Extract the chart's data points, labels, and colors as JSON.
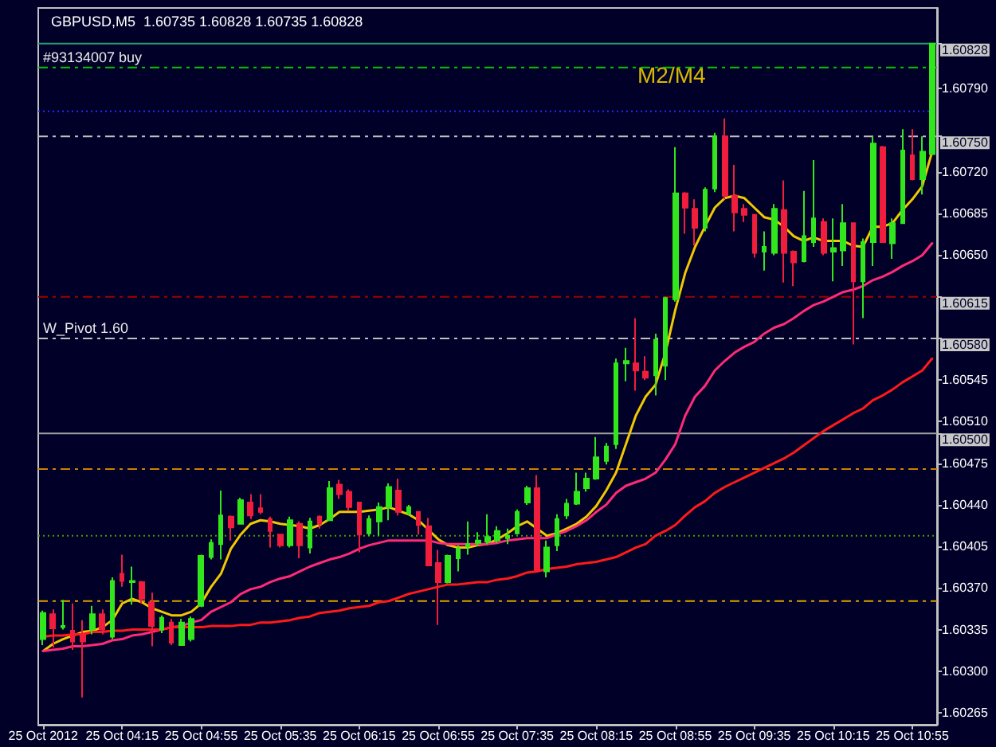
{
  "chart_data": {
    "type": "candlestick",
    "title": "GBPUSD,M5  1.60735 1.60828 1.60735 1.60828",
    "categories": [
      "25 Oct 2012",
      null,
      null,
      null,
      null,
      null,
      null,
      null,
      "25 Oct 04:15",
      null,
      null,
      null,
      null,
      null,
      null,
      null,
      "25 Oct 04:55",
      null,
      null,
      null,
      null,
      null,
      null,
      null,
      "25 Oct 05:35",
      null,
      null,
      null,
      null,
      null,
      null,
      null,
      "25 Oct 06:15",
      null,
      null,
      null,
      null,
      null,
      null,
      null,
      "25 Oct 06:55",
      null,
      null,
      null,
      null,
      null,
      null,
      null,
      "25 Oct 07:35",
      null,
      null,
      null,
      null,
      null,
      null,
      null,
      "25 Oct 08:15",
      null,
      null,
      null,
      null,
      null,
      null,
      null,
      "25 Oct 08:55",
      null,
      null,
      null,
      null,
      null,
      null,
      null,
      "25 Oct 09:35",
      null,
      null,
      null,
      null,
      null,
      null,
      null,
      "25 Oct 10:15",
      null,
      null,
      null,
      null,
      null,
      null,
      null,
      "25 Oct 10:55",
      null,
      null
    ],
    "series": [
      {
        "type": "candlestick",
        "ohlc": [
          [
            1.60327,
            1.60351,
            1.60322,
            1.60349
          ],
          [
            1.60348,
            1.60352,
            1.6032,
            1.60336
          ],
          [
            1.60337,
            1.6036,
            1.60335,
            1.60338
          ],
          [
            1.60334,
            1.60357,
            1.60318,
            1.60325
          ],
          [
            1.60331,
            1.60343,
            1.60278,
            1.60325
          ],
          [
            1.60335,
            1.60355,
            1.60331,
            1.60348
          ],
          [
            1.60348,
            1.60352,
            1.60331,
            1.60335
          ],
          [
            1.60329,
            1.60379,
            1.60327,
            1.60376
          ],
          [
            1.60382,
            1.60398,
            1.60371,
            1.60376
          ],
          [
            1.60375,
            1.60388,
            1.60356,
            1.60376
          ],
          [
            1.60375,
            1.60376,
            1.60357,
            1.60361
          ],
          [
            1.60358,
            1.60366,
            1.60321,
            1.60338
          ],
          [
            1.60335,
            1.60347,
            1.60332,
            1.60345
          ],
          [
            1.60341,
            1.60344,
            1.60322,
            1.60324
          ],
          [
            1.60322,
            1.60344,
            1.60322,
            1.60341
          ],
          [
            1.60327,
            1.60346,
            1.60325,
            1.60344
          ],
          [
            1.60355,
            1.60398,
            1.60354,
            1.60397
          ],
          [
            1.60396,
            1.60411,
            1.60394,
            1.60408
          ],
          [
            1.60407,
            1.60452,
            1.60394,
            1.60431
          ],
          [
            1.6043,
            1.60431,
            1.6041,
            1.60421
          ],
          [
            1.60424,
            1.60446,
            1.60424,
            1.60444
          ],
          [
            1.60442,
            1.60449,
            1.60428,
            1.60431
          ],
          [
            1.60437,
            1.60449,
            1.60432,
            1.60434
          ],
          [
            1.60428,
            1.6043,
            1.60404,
            1.60418
          ],
          [
            1.60415,
            1.60415,
            1.60404,
            1.60406
          ],
          [
            1.60406,
            1.6043,
            1.60404,
            1.60427
          ],
          [
            1.60424,
            1.60426,
            1.60395,
            1.60406
          ],
          [
            1.60404,
            1.60429,
            1.60399,
            1.60426
          ],
          [
            1.6043,
            1.60431,
            1.6042,
            1.60424
          ],
          [
            1.60427,
            1.6046,
            1.60427,
            1.60454
          ],
          [
            1.60457,
            1.60461,
            1.60445,
            1.60449
          ],
          [
            1.60451,
            1.60453,
            1.60435,
            1.60438
          ],
          [
            1.60442,
            1.60442,
            1.604,
            1.60415
          ],
          [
            1.60416,
            1.60431,
            1.60414,
            1.60428
          ],
          [
            1.60426,
            1.60442,
            1.60414,
            1.60438
          ],
          [
            1.60438,
            1.60458,
            1.60427,
            1.60455
          ],
          [
            1.60452,
            1.60462,
            1.60431,
            1.60434
          ],
          [
            1.60433,
            1.6044,
            1.60431,
            1.60438
          ],
          [
            1.60434,
            1.60434,
            1.60415,
            1.60423
          ],
          [
            1.60422,
            1.60429,
            1.60389,
            1.60389
          ],
          [
            1.60391,
            1.60402,
            1.60339,
            1.60375
          ],
          [
            1.60375,
            1.60398,
            1.60374,
            1.60397
          ],
          [
            1.60395,
            1.60406,
            1.60384,
            1.60403
          ],
          [
            1.60405,
            1.60426,
            1.60398,
            1.60407
          ],
          [
            1.60408,
            1.60417,
            1.60405,
            1.6041
          ],
          [
            1.60409,
            1.60432,
            1.60407,
            1.60413
          ],
          [
            1.6041,
            1.60422,
            1.60408,
            1.60418
          ],
          [
            1.60412,
            1.6042,
            1.60407,
            1.60414
          ],
          [
            1.60416,
            1.60436,
            1.60415,
            1.60434
          ],
          [
            1.60442,
            1.60456,
            1.6044,
            1.60454
          ],
          [
            1.60454,
            1.60465,
            1.60384,
            1.60385
          ],
          [
            1.60384,
            1.6041,
            1.60379,
            1.60404
          ],
          [
            1.60406,
            1.60432,
            1.60401,
            1.60428
          ],
          [
            1.60431,
            1.60445,
            1.60428,
            1.60441
          ],
          [
            1.60441,
            1.60467,
            1.6044,
            1.60451
          ],
          [
            1.60454,
            1.60467,
            1.60451,
            1.60462
          ],
          [
            1.60462,
            1.60497,
            1.60461,
            1.6048
          ],
          [
            1.60477,
            1.60492,
            1.60474,
            1.60489
          ],
          [
            1.60491,
            1.60563,
            1.60487,
            1.60559
          ],
          [
            1.60559,
            1.60572,
            1.60544,
            1.60561
          ],
          [
            1.60559,
            1.60597,
            1.60536,
            1.60553
          ],
          [
            1.60552,
            1.60565,
            1.60545,
            1.60547
          ],
          [
            1.60549,
            1.60584,
            1.60532,
            1.60579
          ],
          [
            1.60557,
            1.60615,
            1.60545,
            1.60614
          ],
          [
            1.60613,
            1.60741,
            1.60611,
            1.60702
          ],
          [
            1.60702,
            1.60703,
            1.60668,
            1.6069
          ],
          [
            1.60689,
            1.60697,
            1.60658,
            1.60673
          ],
          [
            1.60673,
            1.60707,
            1.6067,
            1.60705
          ],
          [
            1.60706,
            1.60753,
            1.60703,
            1.6075
          ],
          [
            1.6075,
            1.60765,
            1.60697,
            1.607
          ],
          [
            1.607,
            1.60726,
            1.6067,
            1.60686
          ],
          [
            1.60689,
            1.60693,
            1.60678,
            1.60684
          ],
          [
            1.60684,
            1.60684,
            1.60648,
            1.60652
          ],
          [
            1.60653,
            1.6067,
            1.60637,
            1.60657
          ],
          [
            1.60652,
            1.60693,
            1.6065,
            1.60689
          ],
          [
            1.60688,
            1.60713,
            1.60627,
            1.60652
          ],
          [
            1.60653,
            1.60654,
            1.60624,
            1.60644
          ],
          [
            1.60645,
            1.60704,
            1.60644,
            1.60666
          ],
          [
            1.60661,
            1.6073,
            1.60657,
            1.60681
          ],
          [
            1.60678,
            1.60681,
            1.6065,
            1.60652
          ],
          [
            1.60653,
            1.60681,
            1.60628,
            1.60656
          ],
          [
            1.60654,
            1.60693,
            1.60641,
            1.60677
          ],
          [
            1.60677,
            1.60677,
            1.60575,
            1.60628
          ],
          [
            1.60628,
            1.60664,
            1.60597,
            1.60661
          ],
          [
            1.60661,
            1.6075,
            1.60641,
            1.60744
          ],
          [
            1.60741,
            1.60742,
            1.60661,
            1.60661
          ],
          [
            1.6066,
            1.60681,
            1.60647,
            1.60677
          ],
          [
            1.60677,
            1.60756,
            1.60677,
            1.60738
          ],
          [
            1.60734,
            1.60756,
            1.60713,
            1.60714
          ],
          [
            1.60714,
            1.6075,
            1.60701,
            1.60737
          ],
          [
            1.60735,
            1.60828,
            1.60735,
            1.60828
          ]
        ],
        "colors": [
          "#32e61e",
          "#f01e3c",
          "#32e61e",
          "#f01e3c",
          "#f01e3c",
          "#32e61e",
          "#f01e3c",
          "#32e61e",
          "#f01e3c",
          "#32e61e",
          "#f01e3c",
          "#f01e3c",
          "#32e61e",
          "#f01e3c",
          "#32e61e",
          "#32e61e",
          "#32e61e",
          "#32e61e",
          "#32e61e",
          "#f01e3c",
          "#32e61e",
          "#f01e3c",
          "#f01e3c",
          "#f01e3c",
          "#f01e3c",
          "#32e61e",
          "#f01e3c",
          "#32e61e",
          "#f01e3c",
          "#32e61e",
          "#f01e3c",
          "#f01e3c",
          "#f01e3c",
          "#32e61e",
          "#32e61e",
          "#32e61e",
          "#f01e3c",
          "#32e61e",
          "#f01e3c",
          "#f01e3c",
          "#f01e3c",
          "#32e61e",
          "#32e61e",
          "#32e61e",
          "#32e61e",
          "#32e61e",
          "#32e61e",
          "#32e61e",
          "#32e61e",
          "#32e61e",
          "#f01e3c",
          "#32e61e",
          "#32e61e",
          "#32e61e",
          "#32e61e",
          "#32e61e",
          "#32e61e",
          "#32e61e",
          "#32e61e",
          "#32e61e",
          "#f01e3c",
          "#f01e3c",
          "#32e61e",
          "#32e61e",
          "#32e61e",
          "#f01e3c",
          "#f01e3c",
          "#32e61e",
          "#32e61e",
          "#f01e3c",
          "#f01e3c",
          "#f01e3c",
          "#f01e3c",
          "#32e61e",
          "#32e61e",
          "#f01e3c",
          "#f01e3c",
          "#32e61e",
          "#32e61e",
          "#f01e3c",
          "#32e61e",
          "#32e61e",
          "#f01e3c",
          "#32e61e",
          "#32e61e",
          "#f01e3c",
          "#32e61e",
          "#32e61e",
          "#f01e3c",
          "#32e61e",
          "#32e61e"
        ]
      },
      {
        "type": "line",
        "color": "#f0c800",
        "values": [
          1.60317,
          1.60323,
          1.60327,
          1.6033,
          1.60333,
          1.60334,
          1.60337,
          1.60343,
          1.60357,
          1.60361,
          1.60358,
          1.60353,
          1.6035,
          1.60347,
          1.60347,
          1.6035,
          1.60357,
          1.60371,
          1.60382,
          1.60403,
          1.60415,
          1.60424,
          1.60427,
          1.60426,
          1.60424,
          1.60423,
          1.60422,
          1.6042,
          1.60423,
          1.60428,
          1.60434,
          1.60434,
          1.60434,
          1.60435,
          1.60436,
          1.60438,
          1.60435,
          1.60432,
          1.60427,
          1.60419,
          1.60411,
          1.60406,
          1.60404,
          1.60404,
          1.60406,
          1.60407,
          1.60411,
          1.60416,
          1.60422,
          1.60426,
          1.6042,
          1.60414,
          1.60416,
          1.6042,
          1.60424,
          1.6043,
          1.60439,
          1.60452,
          1.60467,
          1.60491,
          1.60515,
          1.60531,
          1.60541,
          1.60568,
          1.60604,
          1.60635,
          1.60657,
          1.60674,
          1.6069,
          1.60698,
          1.607,
          1.60698,
          1.6069,
          1.60682,
          1.6068,
          1.60674,
          1.60666,
          1.60662,
          1.60665,
          1.60662,
          1.60662,
          1.60662,
          1.60658,
          1.60657,
          1.60674,
          1.60674,
          1.60677,
          1.60688,
          1.60697,
          1.60708,
          1.60737
        ]
      },
      {
        "type": "line",
        "color": "#ff2a78",
        "values": [
          1.60317,
          1.60318,
          1.60319,
          1.60321,
          1.60321,
          1.60322,
          1.60323,
          1.60326,
          1.60327,
          1.6033,
          1.60331,
          1.60333,
          1.60335,
          1.60337,
          1.60338,
          1.60341,
          1.60343,
          1.6035,
          1.60354,
          1.60358,
          1.60365,
          1.60369,
          1.60371,
          1.60375,
          1.60378,
          1.6038,
          1.60384,
          1.60388,
          1.60391,
          1.60394,
          1.60396,
          1.60399,
          1.60403,
          1.60406,
          1.60408,
          1.6041,
          1.6041,
          1.6041,
          1.6041,
          1.6041,
          1.60408,
          1.60407,
          1.60407,
          1.60407,
          1.60407,
          1.60407,
          1.60408,
          1.6041,
          1.60411,
          1.60412,
          1.60412,
          1.60412,
          1.60415,
          1.60418,
          1.60422,
          1.60427,
          1.60434,
          1.6044,
          1.6045,
          1.60456,
          1.60459,
          1.60462,
          1.60467,
          1.60478,
          1.60491,
          1.60515,
          1.60531,
          1.6054,
          1.60553,
          1.60561,
          1.60568,
          1.60573,
          1.60577,
          1.60584,
          1.60589,
          1.60592,
          1.60597,
          1.60603,
          1.60608,
          1.60611,
          1.60615,
          1.60619,
          1.60621,
          1.60624,
          1.60629,
          1.60632,
          1.60636,
          1.60641,
          1.60645,
          1.6065,
          1.6066
        ]
      },
      {
        "type": "line",
        "color": "#ff1a1a",
        "values": [
          1.60329,
          1.6033,
          1.6033,
          1.60331,
          1.60331,
          1.60333,
          1.60333,
          1.60334,
          1.60334,
          1.60335,
          1.60335,
          1.60335,
          1.60335,
          1.60337,
          1.60337,
          1.60337,
          1.60337,
          1.60338,
          1.60338,
          1.60338,
          1.60339,
          1.60339,
          1.60341,
          1.60341,
          1.60342,
          1.60343,
          1.60345,
          1.60346,
          1.60349,
          1.6035,
          1.60351,
          1.60353,
          1.60354,
          1.60355,
          1.60358,
          1.60359,
          1.60362,
          1.60365,
          1.60367,
          1.60369,
          1.60371,
          1.60373,
          1.60373,
          1.60374,
          1.60375,
          1.60375,
          1.60377,
          1.60378,
          1.6038,
          1.60383,
          1.60384,
          1.60386,
          1.60387,
          1.60388,
          1.6039,
          1.60391,
          1.60392,
          1.60394,
          1.60396,
          1.604,
          1.60404,
          1.60407,
          1.60414,
          1.60418,
          1.60423,
          1.60431,
          1.60438,
          1.60443,
          1.6045,
          1.60455,
          1.60459,
          1.60463,
          1.60467,
          1.60471,
          1.60475,
          1.60479,
          1.60484,
          1.6049,
          1.60496,
          1.60502,
          1.60507,
          1.60512,
          1.60517,
          1.60521,
          1.60528,
          1.60532,
          1.60537,
          1.60543,
          1.60548,
          1.60553,
          1.60563
        ]
      }
    ],
    "ylim": [
      1.60255,
      1.60858
    ],
    "yticks": [
      1.60265,
      {
        "value": 1.603,
        "label": "1.60300"
      },
      1.60335,
      {
        "value": 1.6037,
        "label": "1.60370"
      },
      1.60405,
      {
        "value": 1.6044,
        "label": "1.60440"
      },
      1.60475,
      {
        "value": 1.605,
        "label": "1.60500"
      },
      {
        "value": 1.6051,
        "label": "1.60510"
      },
      1.60545,
      {
        "value": 1.6058,
        "label": "1.60580"
      },
      1.60615,
      {
        "value": 1.6065,
        "label": "1.60650"
      },
      1.60685,
      {
        "value": 1.6072,
        "label": "1.60720"
      },
      {
        "value": 1.6075,
        "label": "1.60750"
      },
      {
        "value": 1.6079,
        "label": "1.60790"
      },
      1.60828
    ],
    "ref_lines": [
      {
        "axis": "y",
        "value": 1.60828,
        "color": "#20a070",
        "line_style": "solid"
      },
      {
        "axis": "y",
        "value": 1.60808,
        "label": "#93134007 buy",
        "color": "#00c800",
        "line_style": "dashed"
      },
      {
        "axis": "y",
        "value": 1.60771,
        "color": "#2828ff",
        "line_style": "dotted"
      },
      {
        "axis": "y",
        "value": 1.6075,
        "color": "#c0c0c0",
        "line_style": "dashed"
      },
      {
        "axis": "y",
        "value": 1.60615,
        "color": "#a00000",
        "line_style": "dashed"
      },
      {
        "axis": "y",
        "value": 1.6058,
        "label": "W_Pivot 1.60",
        "color": "#c0c0c0",
        "line_style": "dashed"
      },
      {
        "axis": "y",
        "value": 1.605,
        "color": "#a0a0a0",
        "line_style": "solid"
      },
      {
        "axis": "y",
        "value": 1.6047,
        "color": "#d08000",
        "line_style": "dashed"
      },
      {
        "axis": "y",
        "value": 1.60414,
        "color": "#40a000",
        "line_style": "dotted"
      },
      {
        "axis": "y",
        "value": 1.60359,
        "color": "#e0a000",
        "line_style": "dashed"
      }
    ],
    "annotations": [
      "M2/M4"
    ],
    "marker": "none",
    "line_style": "solid"
  }
}
